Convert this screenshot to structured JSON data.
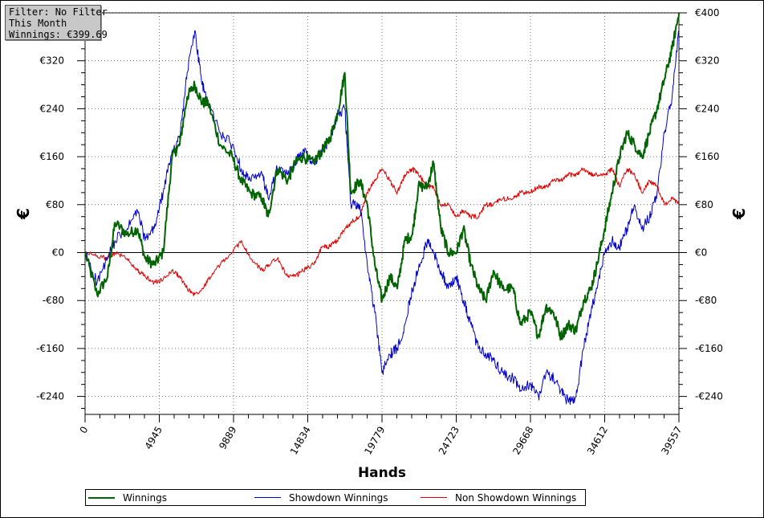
{
  "info_box": {
    "filter": "Filter: No Filter",
    "period": "This Month",
    "winnings": "Winnings: €399.69"
  },
  "chart_data": {
    "type": "line",
    "xlabel": "Hands",
    "ylabel_left": "€",
    "ylabel_right": "€",
    "xlim": [
      0,
      39557
    ],
    "ylim": [
      -270,
      400
    ],
    "x_ticks": [
      0,
      4945,
      9889,
      14834,
      19779,
      24723,
      29668,
      34612,
      39557
    ],
    "y_ticks": [
      -240,
      -160,
      -80,
      0,
      80,
      160,
      240,
      320,
      400
    ],
    "y_tick_labels": [
      "-€240",
      "-€160",
      "-€80",
      "€0",
      "€80",
      "€160",
      "€240",
      "€320",
      "€400"
    ],
    "grid": true,
    "legend_position": "bottom",
    "series": [
      {
        "name": "Winnings",
        "color": "#006400",
        "points": [
          [
            0,
            0
          ],
          [
            800,
            -70
          ],
          [
            1500,
            -40
          ],
          [
            2000,
            50
          ],
          [
            2800,
            30
          ],
          [
            3500,
            40
          ],
          [
            4000,
            -10
          ],
          [
            4600,
            -20
          ],
          [
            5200,
            0
          ],
          [
            5800,
            160
          ],
          [
            6300,
            180
          ],
          [
            6800,
            260
          ],
          [
            7300,
            280
          ],
          [
            7800,
            250
          ],
          [
            8200,
            250
          ],
          [
            9000,
            180
          ],
          [
            9800,
            160
          ],
          [
            10400,
            120
          ],
          [
            11000,
            100
          ],
          [
            11800,
            90
          ],
          [
            12200,
            60
          ],
          [
            12800,
            140
          ],
          [
            13500,
            120
          ],
          [
            14000,
            150
          ],
          [
            14500,
            160
          ],
          [
            15200,
            150
          ],
          [
            15800,
            170
          ],
          [
            16300,
            190
          ],
          [
            16800,
            230
          ],
          [
            17300,
            300
          ],
          [
            17700,
            100
          ],
          [
            18300,
            120
          ],
          [
            18800,
            80
          ],
          [
            19300,
            -20
          ],
          [
            19779,
            -80
          ],
          [
            20300,
            -40
          ],
          [
            20800,
            -60
          ],
          [
            21300,
            20
          ],
          [
            21800,
            30
          ],
          [
            22200,
            110
          ],
          [
            22800,
            110
          ],
          [
            23200,
            150
          ],
          [
            23700,
            40
          ],
          [
            24200,
            0
          ],
          [
            24723,
            0
          ],
          [
            25200,
            40
          ],
          [
            25700,
            -20
          ],
          [
            26200,
            -60
          ],
          [
            26700,
            -80
          ],
          [
            27200,
            -30
          ],
          [
            27800,
            -60
          ],
          [
            28500,
            -60
          ],
          [
            29000,
            -120
          ],
          [
            29668,
            -100
          ],
          [
            30200,
            -140
          ],
          [
            30700,
            -90
          ],
          [
            31200,
            -100
          ],
          [
            31700,
            -140
          ],
          [
            32200,
            -120
          ],
          [
            32700,
            -130
          ],
          [
            33200,
            -80
          ],
          [
            33700,
            -60
          ],
          [
            34100,
            -20
          ],
          [
            34612,
            40
          ],
          [
            35100,
            100
          ],
          [
            35600,
            160
          ],
          [
            36100,
            200
          ],
          [
            36600,
            180
          ],
          [
            37100,
            160
          ],
          [
            37600,
            200
          ],
          [
            38100,
            240
          ],
          [
            38600,
            290
          ],
          [
            39100,
            340
          ],
          [
            39557,
            400
          ]
        ]
      },
      {
        "name": "Showdown Winnings",
        "color": "#0000c8",
        "points": [
          [
            0,
            0
          ],
          [
            800,
            -50
          ],
          [
            1500,
            -10
          ],
          [
            2000,
            20
          ],
          [
            2800,
            40
          ],
          [
            3500,
            70
          ],
          [
            4000,
            20
          ],
          [
            4600,
            40
          ],
          [
            5200,
            100
          ],
          [
            5800,
            170
          ],
          [
            6300,
            190
          ],
          [
            6800,
            300
          ],
          [
            7300,
            370
          ],
          [
            7800,
            280
          ],
          [
            8200,
            250
          ],
          [
            9000,
            200
          ],
          [
            9800,
            180
          ],
          [
            10400,
            140
          ],
          [
            11000,
            120
          ],
          [
            11800,
            130
          ],
          [
            12200,
            90
          ],
          [
            12800,
            140
          ],
          [
            13500,
            130
          ],
          [
            14000,
            150
          ],
          [
            14500,
            170
          ],
          [
            15200,
            150
          ],
          [
            15800,
            170
          ],
          [
            16300,
            190
          ],
          [
            16800,
            230
          ],
          [
            17300,
            240
          ],
          [
            17700,
            80
          ],
          [
            18300,
            80
          ],
          [
            18800,
            -20
          ],
          [
            19300,
            -100
          ],
          [
            19779,
            -200
          ],
          [
            20300,
            -170
          ],
          [
            20800,
            -160
          ],
          [
            21300,
            -120
          ],
          [
            21800,
            -60
          ],
          [
            22200,
            -30
          ],
          [
            22800,
            20
          ],
          [
            23200,
            0
          ],
          [
            23700,
            -30
          ],
          [
            24200,
            -60
          ],
          [
            24723,
            -40
          ],
          [
            25200,
            -80
          ],
          [
            25700,
            -120
          ],
          [
            26200,
            -160
          ],
          [
            26700,
            -170
          ],
          [
            27200,
            -180
          ],
          [
            27800,
            -200
          ],
          [
            28500,
            -210
          ],
          [
            29000,
            -230
          ],
          [
            29668,
            -220
          ],
          [
            30200,
            -240
          ],
          [
            30700,
            -200
          ],
          [
            31200,
            -210
          ],
          [
            31700,
            -230
          ],
          [
            32200,
            -250
          ],
          [
            32700,
            -240
          ],
          [
            33200,
            -160
          ],
          [
            33700,
            -100
          ],
          [
            34100,
            -60
          ],
          [
            34612,
            0
          ],
          [
            35100,
            20
          ],
          [
            35600,
            10
          ],
          [
            36100,
            40
          ],
          [
            36600,
            80
          ],
          [
            37100,
            40
          ],
          [
            37600,
            60
          ],
          [
            38100,
            100
          ],
          [
            38600,
            200
          ],
          [
            39100,
            260
          ],
          [
            39557,
            370
          ]
        ]
      },
      {
        "name": "Non Showdown Winnings",
        "color": "#e00000",
        "points": [
          [
            0,
            0
          ],
          [
            800,
            -5
          ],
          [
            1500,
            -10
          ],
          [
            2000,
            0
          ],
          [
            2800,
            -10
          ],
          [
            3500,
            -30
          ],
          [
            4000,
            -40
          ],
          [
            4600,
            -50
          ],
          [
            5200,
            -45
          ],
          [
            5800,
            -30
          ],
          [
            6300,
            -40
          ],
          [
            6800,
            -60
          ],
          [
            7300,
            -70
          ],
          [
            7800,
            -60
          ],
          [
            8200,
            -45
          ],
          [
            9000,
            -20
          ],
          [
            9800,
            0
          ],
          [
            10400,
            20
          ],
          [
            11000,
            -10
          ],
          [
            11800,
            -30
          ],
          [
            12200,
            -20
          ],
          [
            12800,
            -10
          ],
          [
            13500,
            -40
          ],
          [
            14000,
            -40
          ],
          [
            14500,
            -30
          ],
          [
            15200,
            -20
          ],
          [
            15800,
            10
          ],
          [
            16300,
            10
          ],
          [
            16800,
            20
          ],
          [
            17300,
            40
          ],
          [
            17700,
            50
          ],
          [
            18300,
            60
          ],
          [
            18800,
            100
          ],
          [
            19300,
            120
          ],
          [
            19779,
            140
          ],
          [
            20300,
            120
          ],
          [
            20800,
            100
          ],
          [
            21300,
            130
          ],
          [
            21800,
            140
          ],
          [
            22200,
            130
          ],
          [
            22800,
            110
          ],
          [
            23200,
            110
          ],
          [
            23700,
            80
          ],
          [
            24200,
            80
          ],
          [
            24723,
            60
          ],
          [
            25200,
            70
          ],
          [
            25700,
            60
          ],
          [
            26200,
            60
          ],
          [
            26700,
            80
          ],
          [
            27200,
            80
          ],
          [
            27800,
            90
          ],
          [
            28500,
            90
          ],
          [
            29000,
            100
          ],
          [
            29668,
            100
          ],
          [
            30200,
            110
          ],
          [
            30700,
            110
          ],
          [
            31200,
            120
          ],
          [
            31700,
            120
          ],
          [
            32200,
            130
          ],
          [
            32700,
            130
          ],
          [
            33200,
            140
          ],
          [
            33700,
            130
          ],
          [
            34100,
            130
          ],
          [
            34612,
            130
          ],
          [
            35100,
            140
          ],
          [
            35600,
            110
          ],
          [
            36100,
            140
          ],
          [
            36600,
            130
          ],
          [
            37100,
            100
          ],
          [
            37600,
            120
          ],
          [
            38100,
            110
          ],
          [
            38600,
            80
          ],
          [
            39100,
            90
          ],
          [
            39557,
            80
          ]
        ]
      }
    ]
  },
  "legend": {
    "items": [
      {
        "label": "Winnings",
        "color": "#006400"
      },
      {
        "label": "Showdown Winnings",
        "color": "#0000c8"
      },
      {
        "label": "Non Showdown Winnings",
        "color": "#e00000"
      }
    ]
  }
}
